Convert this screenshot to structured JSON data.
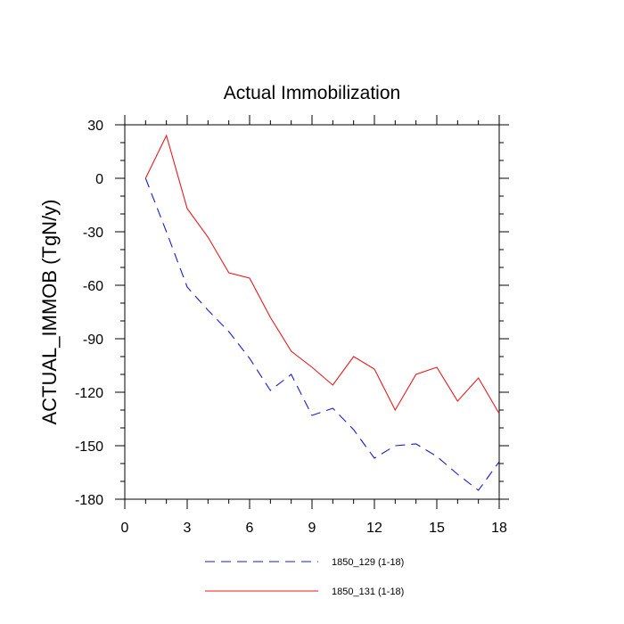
{
  "chart_data": {
    "type": "line",
    "title": "Actual Immobilization",
    "xlabel": "",
    "ylabel": "ACTUAL_IMMOB  (TgN/y)",
    "xlim": [
      0,
      18
    ],
    "ylim": [
      -180,
      30
    ],
    "xticks": [
      0,
      3,
      6,
      9,
      12,
      15,
      18
    ],
    "yticks": [
      30,
      0,
      -30,
      -60,
      -90,
      -120,
      -150,
      -180
    ],
    "x": [
      1,
      2,
      3,
      4,
      5,
      6,
      7,
      8,
      9,
      10,
      11,
      12,
      13,
      14,
      15,
      16,
      17,
      18
    ],
    "series": [
      {
        "name": "1850_129 (1-18)",
        "color": "#1a1acc",
        "dash": "dashed",
        "values": [
          0,
          -30,
          -61,
          -74,
          -86,
          -101,
          -119,
          -110,
          -133,
          -129,
          -141,
          -157,
          -150,
          -149,
          -156,
          -166,
          -175,
          -159
        ]
      },
      {
        "name": "1850_131 (1-18)",
        "color": "#e31a1c",
        "dash": "solid",
        "values": [
          0,
          24,
          -17,
          -33,
          -53,
          -56,
          -78,
          -97,
          -106,
          -116,
          -100,
          -107,
          -130,
          -110,
          -106,
          -125,
          -112,
          -132
        ]
      }
    ],
    "legend_position": "bottom"
  }
}
